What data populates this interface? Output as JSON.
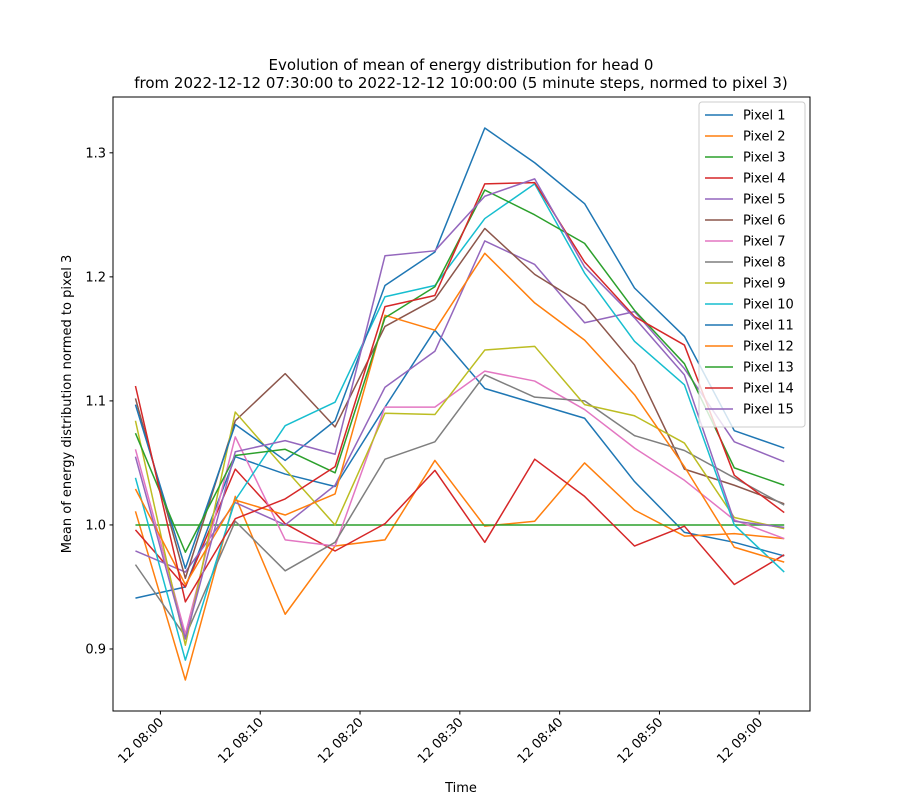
{
  "chart_data": {
    "type": "line",
    "title_line1": "Evolution of mean of energy distribution for head 0",
    "title_line2": "from 2022-12-12 07:30:00 to 2022-12-12 10:00:00 (5 minute steps, normed to pixel 3)",
    "xlabel": "Time",
    "ylabel": "Mean of energy distribution normed to pixel 3",
    "x": [
      "07:57:30",
      "08:02:30",
      "08:07:30",
      "08:12:30",
      "08:17:30",
      "08:22:30",
      "08:27:30",
      "08:32:30",
      "08:37:30",
      "08:42:30",
      "08:47:30",
      "08:52:30",
      "08:57:30",
      "09:02:30"
    ],
    "x_ticks": [
      "12 08:00",
      "12 08:10",
      "12 08:20",
      "12 08:30",
      "12 08:40",
      "12 08:50",
      "12 09:00"
    ],
    "x_tick_times": [
      "08:00",
      "08:10",
      "08:20",
      "08:30",
      "08:40",
      "08:50",
      "09:00"
    ],
    "xlim": [
      "07:55:15",
      "09:05:05"
    ],
    "y_ticks": [
      "0.9",
      "1.0",
      "1.1",
      "1.2",
      "1.3"
    ],
    "ylim": [
      0.85,
      1.345
    ],
    "legend_position": "upper right",
    "grid": false,
    "series": [
      {
        "name": "Pixel 1",
        "color": "#1f77b4",
        "values": [
          0.941,
          0.95,
          1.055,
          1.041,
          1.031,
          1.095,
          1.157,
          1.11,
          1.098,
          1.086,
          1.035,
          0.994,
          0.986,
          0.975
        ]
      },
      {
        "name": "Pixel 2",
        "color": "#ff7f0e",
        "values": [
          1.011,
          0.875,
          1.023,
          0.928,
          0.983,
          0.988,
          1.052,
          0.999,
          1.003,
          1.05,
          1.012,
          0.991,
          0.993,
          0.989
        ]
      },
      {
        "name": "Pixel 3",
        "color": "#2ca02c",
        "values": [
          1.0,
          1.0,
          1.0,
          1.0,
          1.0,
          1.0,
          1.0,
          1.0,
          1.0,
          1.0,
          1.0,
          1.0,
          1.0,
          1.0
        ]
      },
      {
        "name": "Pixel 4",
        "color": "#d62728",
        "values": [
          0.996,
          0.95,
          1.045,
          1.001,
          0.979,
          1.001,
          1.044,
          0.986,
          1.053,
          1.023,
          0.983,
          0.999,
          0.952,
          0.976
        ]
      },
      {
        "name": "Pixel 5",
        "color": "#9467bd",
        "values": [
          0.979,
          0.962,
          1.018,
          1.0,
          1.032,
          1.111,
          1.14,
          1.229,
          1.21,
          1.163,
          1.172,
          1.126,
          1.067,
          1.051
        ]
      },
      {
        "name": "Pixel 6",
        "color": "#8c564b",
        "values": [
          1.102,
          0.957,
          1.084,
          1.122,
          1.079,
          1.16,
          1.182,
          1.239,
          1.202,
          1.177,
          1.129,
          1.045,
          1.032,
          1.017
        ]
      },
      {
        "name": "Pixel 7",
        "color": "#e377c2",
        "values": [
          1.061,
          0.912,
          1.071,
          0.988,
          0.983,
          1.095,
          1.095,
          1.124,
          1.116,
          1.093,
          1.062,
          1.036,
          1.004,
          0.989
        ]
      },
      {
        "name": "Pixel 8",
        "color": "#7f7f7f",
        "values": [
          0.968,
          0.91,
          1.003,
          0.963,
          0.986,
          1.053,
          1.067,
          1.121,
          1.103,
          1.1,
          1.072,
          1.06,
          1.038,
          1.016
        ]
      },
      {
        "name": "Pixel 9",
        "color": "#bcbd22",
        "values": [
          1.084,
          0.903,
          1.091,
          1.045,
          1.0,
          1.09,
          1.089,
          1.141,
          1.144,
          1.097,
          1.088,
          1.066,
          1.006,
          0.997
        ]
      },
      {
        "name": "Pixel 10",
        "color": "#17becf",
        "values": [
          1.038,
          0.891,
          1.02,
          1.08,
          1.099,
          1.184,
          1.193,
          1.247,
          1.275,
          1.203,
          1.148,
          1.113,
          1.0,
          0.962
        ]
      },
      {
        "name": "Pixel 11",
        "color": "#1f77b4",
        "values": [
          1.097,
          0.965,
          1.081,
          1.052,
          1.084,
          1.193,
          1.22,
          1.32,
          1.292,
          1.259,
          1.191,
          1.152,
          1.076,
          1.062
        ]
      },
      {
        "name": "Pixel 12",
        "color": "#ff7f0e",
        "values": [
          1.029,
          0.952,
          1.02,
          1.008,
          1.025,
          1.169,
          1.157,
          1.219,
          1.179,
          1.149,
          1.105,
          1.047,
          0.982,
          0.97
        ]
      },
      {
        "name": "Pixel 13",
        "color": "#2ca02c",
        "values": [
          1.074,
          0.978,
          1.056,
          1.061,
          1.042,
          1.167,
          1.192,
          1.27,
          1.25,
          1.227,
          1.173,
          1.13,
          1.046,
          1.032
        ]
      },
      {
        "name": "Pixel 14",
        "color": "#d62728",
        "values": [
          1.112,
          0.938,
          1.005,
          1.021,
          1.047,
          1.176,
          1.185,
          1.275,
          1.276,
          1.212,
          1.168,
          1.145,
          1.04,
          1.01
        ]
      },
      {
        "name": "Pixel 15",
        "color": "#9467bd",
        "values": [
          1.055,
          0.908,
          1.059,
          1.068,
          1.057,
          1.217,
          1.221,
          1.265,
          1.279,
          1.208,
          1.167,
          1.121,
          1.003,
          0.998
        ]
      }
    ]
  }
}
